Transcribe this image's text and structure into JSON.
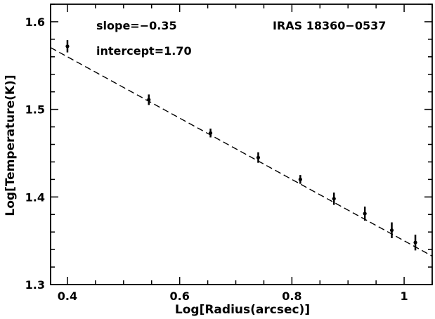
{
  "chart_data": {
    "type": "scatter",
    "title": "",
    "xlabel": "Log[Radius(arcsec)]",
    "ylabel": "Log[Temperature(K)]",
    "xlim": [
      0.37,
      1.05
    ],
    "ylim": [
      1.3,
      1.62
    ],
    "xticks": [
      0.4,
      0.6,
      0.8,
      1.0
    ],
    "xtick_labels": [
      "0.4",
      "0.6",
      "0.8",
      "1"
    ],
    "yticks": [
      1.3,
      1.4,
      1.5,
      1.6
    ],
    "ytick_labels": [
      "1.3",
      "1.4",
      "1.5",
      "1.6"
    ],
    "grid": false,
    "annotations": {
      "slope": "slope=−0.35",
      "intercept": "intercept=1.70",
      "source": "IRAS 18360−0537"
    },
    "fit": {
      "slope": -0.35,
      "intercept": 1.7,
      "style": "dashed"
    },
    "series": [
      {
        "points": [
          {
            "x": 0.4,
            "y": 1.572,
            "err": 0.007
          },
          {
            "x": 0.545,
            "y": 1.511,
            "err": 0.006
          },
          {
            "x": 0.655,
            "y": 1.473,
            "err": 0.005
          },
          {
            "x": 0.74,
            "y": 1.445,
            "err": 0.006
          },
          {
            "x": 0.815,
            "y": 1.42,
            "err": 0.005
          },
          {
            "x": 0.875,
            "y": 1.398,
            "err": 0.007
          },
          {
            "x": 0.93,
            "y": 1.381,
            "err": 0.008
          },
          {
            "x": 0.978,
            "y": 1.362,
            "err": 0.009
          },
          {
            "x": 1.02,
            "y": 1.348,
            "err": 0.009
          }
        ]
      }
    ]
  }
}
